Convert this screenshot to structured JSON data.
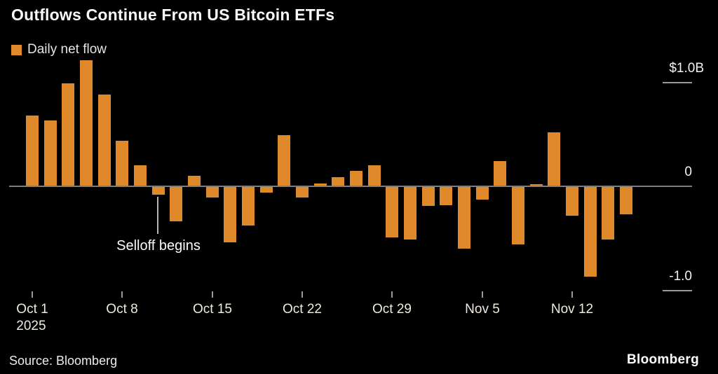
{
  "title": "Outflows Continue From US Bitcoin ETFs",
  "legend": {
    "label": "Daily net flow"
  },
  "annotation": {
    "text": "Selloff begins"
  },
  "source": "Source: Bloomberg",
  "brand": "Bloomberg",
  "colors": {
    "background": "#000000",
    "bar": "#e0892b",
    "axis_line": "#7d7d7d",
    "tick_line": "#9a9a9a",
    "text": "#f2f2f2"
  },
  "chart_data": {
    "type": "bar",
    "title": "Outflows Continue From US Bitcoin ETFs",
    "series_name": "Daily net flow",
    "unit": "USD billions",
    "categories": [
      "Oct 1",
      "Oct 2",
      "Oct 3",
      "Oct 6",
      "Oct 7",
      "Oct 8",
      "Oct 9",
      "Oct 10",
      "Oct 13",
      "Oct 14",
      "Oct 15",
      "Oct 16",
      "Oct 17",
      "Oct 20",
      "Oct 21",
      "Oct 22",
      "Oct 23",
      "Oct 24",
      "Oct 27",
      "Oct 28",
      "Oct 29",
      "Oct 30",
      "Oct 31",
      "Nov 3",
      "Nov 4",
      "Nov 5",
      "Nov 6",
      "Nov 7",
      "Nov 10",
      "Nov 11",
      "Nov 12",
      "Nov 13",
      "Nov 14",
      "Nov 17"
    ],
    "values": [
      0.68,
      0.63,
      0.99,
      1.21,
      0.88,
      0.44,
      0.2,
      -0.08,
      -0.34,
      0.1,
      -0.11,
      -0.54,
      -0.38,
      -0.06,
      0.49,
      -0.11,
      0.03,
      0.09,
      0.15,
      0.2,
      -0.49,
      -0.51,
      -0.19,
      -0.18,
      -0.6,
      -0.13,
      0.24,
      -0.56,
      0.02,
      0.52,
      -0.28,
      -0.87,
      -0.51,
      -0.27
    ],
    "x_ticks": [
      {
        "index": 0,
        "label": "Oct 1",
        "sub": "2025"
      },
      {
        "index": 5,
        "label": "Oct 8"
      },
      {
        "index": 10,
        "label": "Oct 15"
      },
      {
        "index": 15,
        "label": "Oct 22"
      },
      {
        "index": 20,
        "label": "Oct 29"
      },
      {
        "index": 25,
        "label": "Nov 5"
      },
      {
        "index": 30,
        "label": "Nov 12"
      }
    ],
    "y_ticks": [
      {
        "label": "$1.0B",
        "value": 1.0
      },
      {
        "label": "0",
        "value": 0
      },
      {
        "label": "-1.0",
        "value": -1.0
      }
    ],
    "ylim": [
      -1.1,
      1.35
    ],
    "grid": false,
    "legend_position": "top-left",
    "annotation": {
      "text": "Selloff begins",
      "index": 7
    }
  }
}
